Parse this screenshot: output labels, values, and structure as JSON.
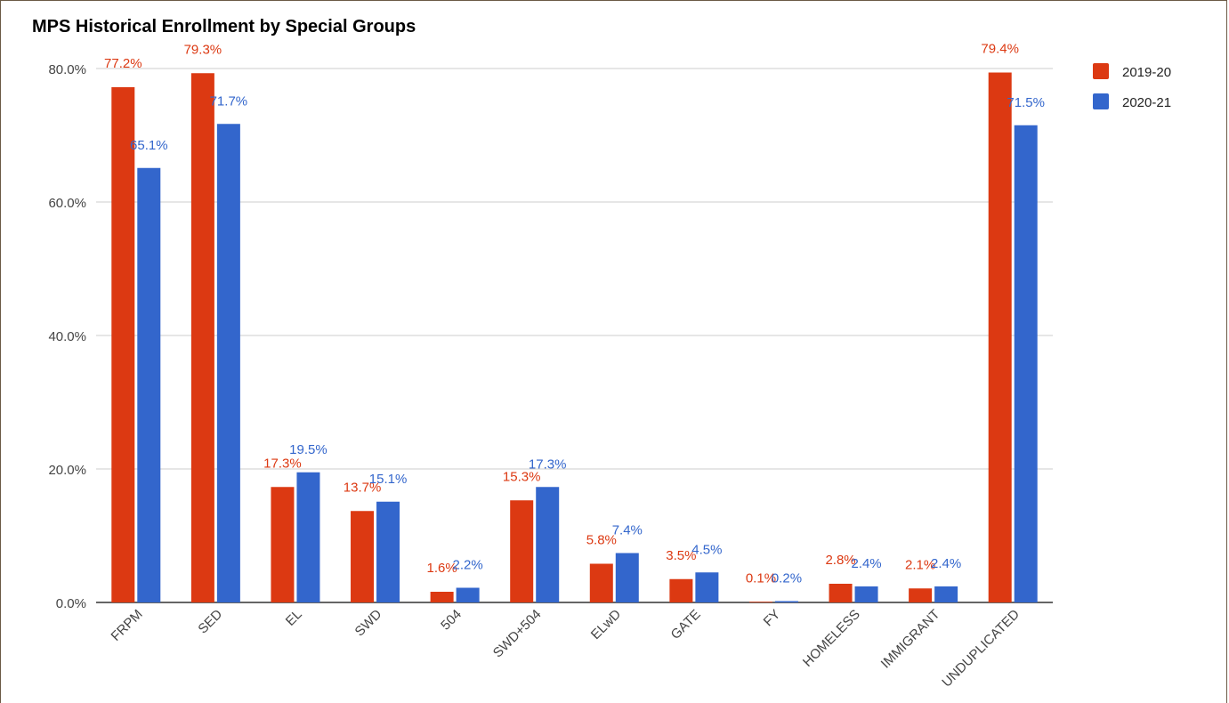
{
  "chart_data": {
    "type": "bar",
    "title": "MPS Historical Enrollment by Special Groups",
    "categories": [
      "FRPM",
      "SED",
      "EL",
      "SWD",
      "504",
      "SWD+504",
      "ELwD",
      "GATE",
      "FY",
      "HOMELESS",
      "IMMIGRANT",
      "UNDUPLICATED"
    ],
    "series": [
      {
        "name": "2019-20",
        "color": "#dc3912",
        "values": [
          77.2,
          79.3,
          17.3,
          13.7,
          1.6,
          15.3,
          5.8,
          3.5,
          0.1,
          2.8,
          2.1,
          79.4
        ],
        "labels": [
          "77.2%",
          "79.3%",
          "17.3%",
          "13.7%",
          "1.6%",
          "15.3%",
          "5.8%",
          "3.5%",
          "0.1%",
          "2.8%",
          "2.1%",
          "79.4%"
        ]
      },
      {
        "name": "2020-21",
        "color": "#3366cc",
        "values": [
          65.1,
          71.7,
          19.5,
          15.1,
          2.2,
          17.3,
          7.4,
          4.5,
          0.2,
          2.4,
          2.4,
          71.5
        ],
        "labels": [
          "65.1%",
          "71.7%",
          "19.5%",
          "15.1%",
          "2.2%",
          "17.3%",
          "7.4%",
          "4.5%",
          "0.2%",
          "2.4%",
          "2.4%",
          "71.5%"
        ]
      }
    ],
    "ylim": [
      0,
      80
    ],
    "yticks": [
      0,
      20,
      40,
      60,
      80
    ],
    "ytick_labels": [
      "0.0%",
      "20.0%",
      "40.0%",
      "60.0%",
      "80.0%"
    ],
    "grid": true,
    "legend_position": "right"
  }
}
